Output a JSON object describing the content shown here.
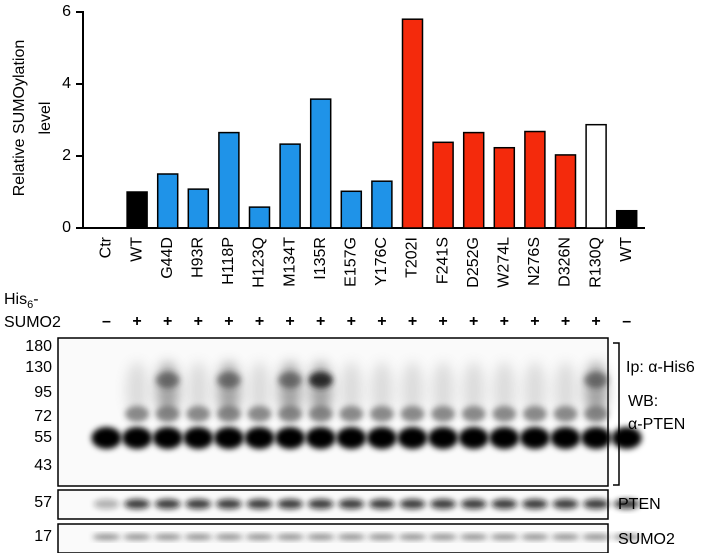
{
  "chart_data": {
    "type": "bar",
    "y_label": [
      "Relative SUMOylation",
      "level"
    ],
    "categories": [
      "Ctr",
      "WT",
      "G44D",
      "H93R",
      "H118P",
      "H123Q",
      "M134T",
      "I135R",
      "E157G",
      "Y176C",
      "T202I",
      "F241S",
      "D252G",
      "W274L",
      "N276S",
      "D326N",
      "R130Q",
      "WT"
    ],
    "values": [
      0,
      1.0,
      1.5,
      1.08,
      2.65,
      0.58,
      2.33,
      3.58,
      1.02,
      1.3,
      5.8,
      2.38,
      2.65,
      2.23,
      2.68,
      2.03,
      2.87,
      0.48
    ],
    "colors": [
      "#000000",
      "#000000",
      "#1f93e8",
      "#1f93e8",
      "#1f93e8",
      "#1f93e8",
      "#1f93e8",
      "#1f93e8",
      "#1f93e8",
      "#1f93e8",
      "#f42a0c",
      "#f42a0c",
      "#f42a0c",
      "#f42a0c",
      "#f42a0c",
      "#f42a0c",
      "#ffffff",
      "#000000"
    ],
    "ylim": [
      0,
      6
    ],
    "yticks": [
      0,
      2,
      4,
      6
    ],
    "grid": false
  },
  "blot": {
    "his_label_main": "His",
    "his_label_sub": "6",
    "his_label_end": "-",
    "sumo_label": "SUMO2",
    "signs": [
      "–",
      "+",
      "+",
      "+",
      "+",
      "+",
      "+",
      "+",
      "+",
      "+",
      "+",
      "+",
      "+",
      "+",
      "+",
      "+",
      "+",
      "–"
    ],
    "panel1_markers": [
      "180",
      "130",
      "95",
      "72",
      "55",
      "43"
    ],
    "panel2_markers": [
      "57"
    ],
    "panel3_markers": [
      "17"
    ],
    "ip_label": "Ip: α-His6",
    "wb_label": "WB:",
    "wb_antibody": "α-PTEN",
    "panel2_label": "PTEN",
    "panel3_label": "SUMO2"
  }
}
